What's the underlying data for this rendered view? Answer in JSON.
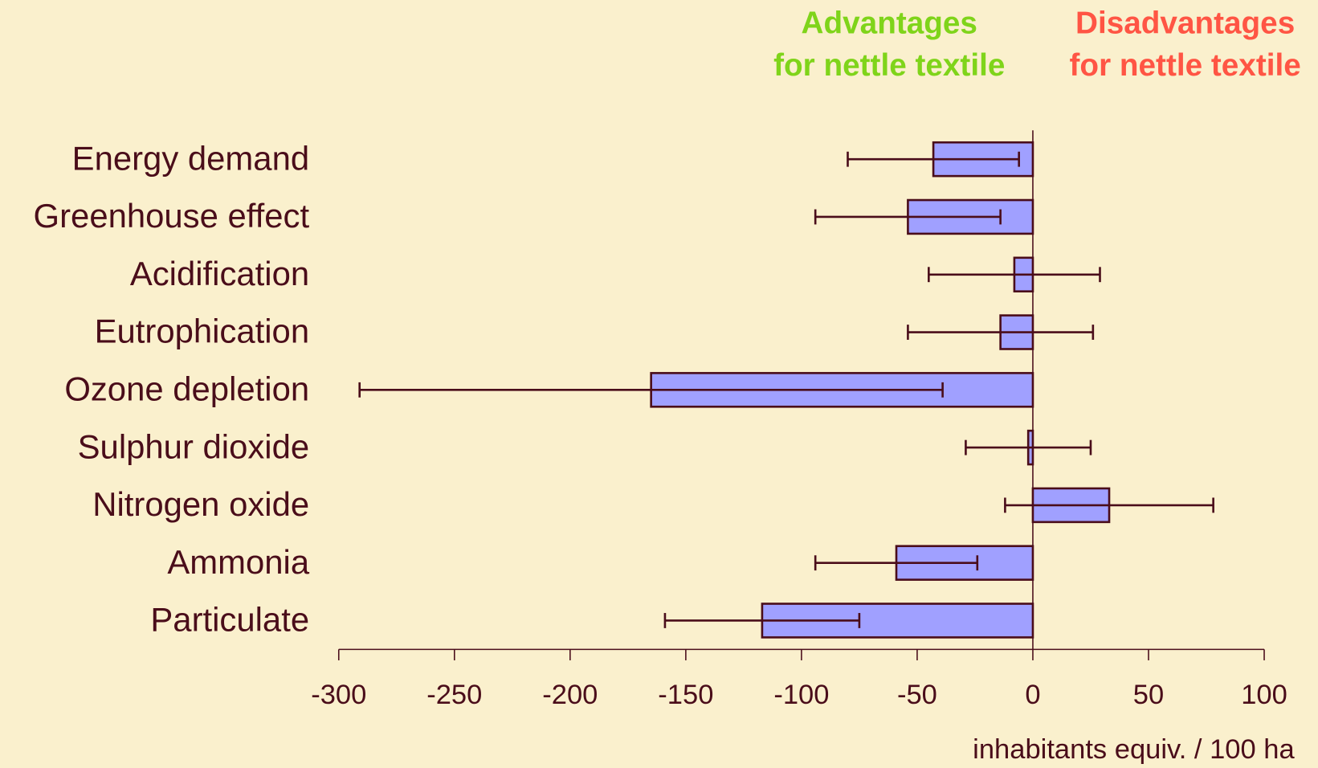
{
  "chart_data": {
    "type": "hbar-error",
    "categories": [
      "Energy demand",
      "Greenhouse effect",
      "Acidification",
      "Eutrophication",
      "Ozone depletion",
      "Sulphur dioxide",
      "Nitrogen oxide",
      "Ammonia",
      "Particulate"
    ],
    "values": [
      -43,
      -54,
      -8,
      -14,
      -165,
      -2,
      33,
      -59,
      -117
    ],
    "errors": [
      37,
      40,
      37,
      40,
      126,
      27,
      45,
      35,
      42
    ],
    "color": "#a0a0ff",
    "xlim": [
      -300,
      100
    ],
    "xticks": [
      -300,
      -250,
      -200,
      -150,
      -100,
      -50,
      0,
      50,
      100
    ],
    "xlabel": "inhabitants equiv. / 100 ha",
    "annotations": [
      {
        "lines": [
          "Advantages",
          "for nettle textile"
        ],
        "color": "#7fd41a"
      },
      {
        "lines": [
          "Disadvantages",
          "for nettle textile"
        ],
        "color": "#ff5544"
      }
    ]
  }
}
